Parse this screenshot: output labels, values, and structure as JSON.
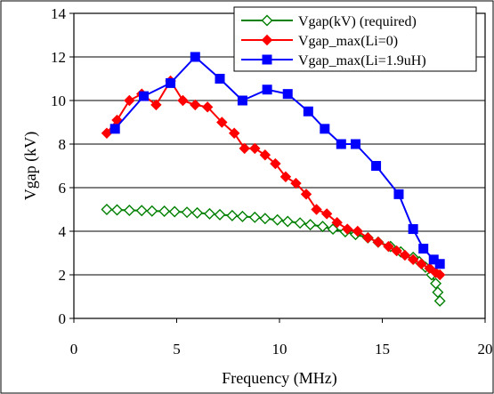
{
  "chart_data": {
    "type": "line",
    "title": "",
    "xlabel": "Frequency (MHz)",
    "ylabel": "Vgap (kV)",
    "xlim": [
      0,
      20
    ],
    "ylim": [
      0,
      14
    ],
    "xticks": [
      "0",
      "5",
      "10",
      "15",
      "20"
    ],
    "yticks": [
      "0",
      "2",
      "4",
      "6",
      "8",
      "10",
      "12",
      "14"
    ],
    "grid": "horizontal",
    "legend_position": "top-right",
    "series": [
      {
        "name": "Vgap(kV) (required)",
        "color": "#008000",
        "marker": "diamond-open",
        "x": [
          1.6,
          2.1,
          2.7,
          3.3,
          3.8,
          4.4,
          4.9,
          5.5,
          6.0,
          6.6,
          7.1,
          7.7,
          8.2,
          8.8,
          9.3,
          9.9,
          10.4,
          11.0,
          11.5,
          12.1,
          12.6,
          13.2,
          13.7,
          14.3,
          14.8,
          15.4,
          15.9,
          16.5,
          16.8,
          17.1,
          17.4,
          17.6,
          17.7,
          17.8
        ],
        "y": [
          5.0,
          4.98,
          4.96,
          4.95,
          4.93,
          4.92,
          4.9,
          4.87,
          4.84,
          4.8,
          4.76,
          4.72,
          4.68,
          4.64,
          4.58,
          4.52,
          4.45,
          4.38,
          4.3,
          4.22,
          4.1,
          3.98,
          3.85,
          3.7,
          3.5,
          3.3,
          3.05,
          2.8,
          2.6,
          2.35,
          2.0,
          1.6,
          1.2,
          0.8
        ]
      },
      {
        "name": "Vgap_max(Li=0)",
        "color": "#ff0000",
        "marker": "diamond-filled",
        "x": [
          1.6,
          2.1,
          2.7,
          3.3,
          4.0,
          4.7,
          5.3,
          5.9,
          6.5,
          7.2,
          7.8,
          8.3,
          8.8,
          9.3,
          9.8,
          10.3,
          10.8,
          11.3,
          11.8,
          12.3,
          12.8,
          13.3,
          13.8,
          14.3,
          14.8,
          15.3,
          15.7,
          16.1,
          16.5,
          16.9,
          17.3,
          17.6,
          17.8
        ],
        "y": [
          8.5,
          9.1,
          10.0,
          10.3,
          9.8,
          10.9,
          10.0,
          9.8,
          9.7,
          9.0,
          8.5,
          7.8,
          7.8,
          7.5,
          7.1,
          6.5,
          6.2,
          5.7,
          5.0,
          4.8,
          4.4,
          4.1,
          4.0,
          3.7,
          3.5,
          3.3,
          3.1,
          2.9,
          2.7,
          2.5,
          2.3,
          2.1,
          2.0
        ]
      },
      {
        "name": "Vgap_max(Li=1.9uH)",
        "color": "#0000ff",
        "marker": "square-filled",
        "x": [
          2.0,
          3.4,
          4.7,
          5.9,
          7.1,
          8.2,
          9.4,
          10.4,
          11.4,
          12.2,
          13.0,
          13.7,
          14.7,
          15.8,
          16.5,
          17.0,
          17.5,
          17.8
        ],
        "y": [
          8.7,
          10.2,
          10.8,
          12.0,
          11.0,
          10.0,
          10.5,
          10.3,
          9.5,
          8.7,
          8.0,
          8.0,
          7.0,
          5.7,
          4.1,
          3.2,
          2.7,
          2.5
        ]
      }
    ]
  }
}
